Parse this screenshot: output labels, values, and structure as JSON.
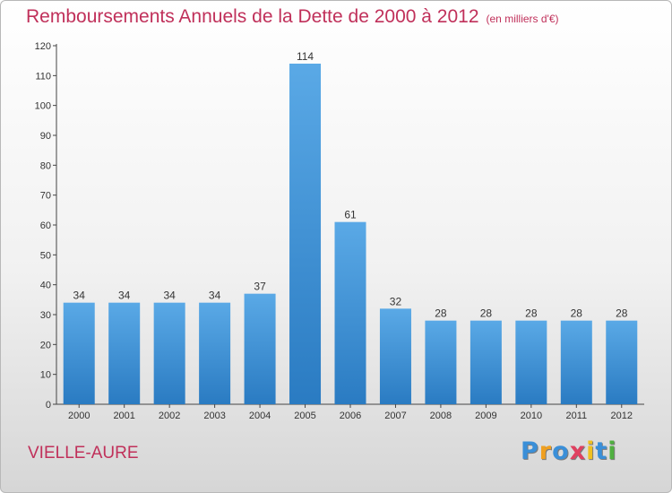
{
  "chart_data": {
    "type": "bar",
    "title": "Remboursements Annuels de la Dette de 2000 à 2012",
    "subtitle": "(en milliers d'€)",
    "xlabel": "",
    "ylabel": "",
    "categories": [
      "2000",
      "2001",
      "2002",
      "2003",
      "2004",
      "2005",
      "2006",
      "2007",
      "2008",
      "2009",
      "2010",
      "2011",
      "2012"
    ],
    "values": [
      34,
      34,
      34,
      34,
      37,
      114,
      61,
      32,
      28,
      28,
      28,
      28,
      28
    ],
    "ylim": [
      0,
      120
    ],
    "yticks": [
      0,
      10,
      20,
      30,
      40,
      50,
      60,
      70,
      80,
      90,
      100,
      110,
      120
    ],
    "grid": false,
    "legend": "none"
  },
  "commune": "VIELLE-AURE",
  "logo": {
    "text": "Proxiti",
    "letters": [
      "P",
      "r",
      "o",
      "x",
      "i",
      "t",
      "i"
    ],
    "colors": [
      "#3a8fd8",
      "#f0a020",
      "#3a8fd8",
      "#e04060",
      "#f0c020",
      "#3a8fd8",
      "#50b040"
    ]
  },
  "colors": {
    "title": "#c0305a",
    "bar_top": "#5aa9e6",
    "bar_bottom": "#2a7bc2",
    "axis": "#444444"
  }
}
